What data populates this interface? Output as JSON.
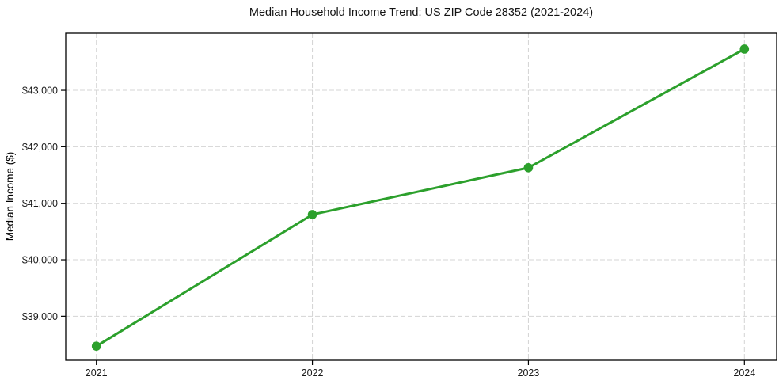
{
  "chart_data": {
    "type": "line",
    "title": "Median Household Income Trend: US ZIP Code 28352 (2021-2024)",
    "xlabel": "",
    "ylabel": "Median Income ($)",
    "categories": [
      "2021",
      "2022",
      "2023",
      "2024"
    ],
    "values": [
      38470,
      40800,
      41630,
      43730
    ],
    "y_ticks": [
      {
        "value": 39000,
        "label": "$39,000"
      },
      {
        "value": 40000,
        "label": "$40,000"
      },
      {
        "value": 41000,
        "label": "$41,000"
      },
      {
        "value": 42000,
        "label": "$42,000"
      },
      {
        "value": 43000,
        "label": "$43,000"
      }
    ],
    "ylim": [
      38220,
      44010
    ],
    "grid": true,
    "grid_style": "dashed",
    "legend": false,
    "colors": {
      "line": "#2ca02c",
      "marker": "#2ca02c",
      "grid": "#d4d4d4",
      "axis": "#000000",
      "text": "#1a1a1a",
      "background": "#ffffff"
    }
  }
}
